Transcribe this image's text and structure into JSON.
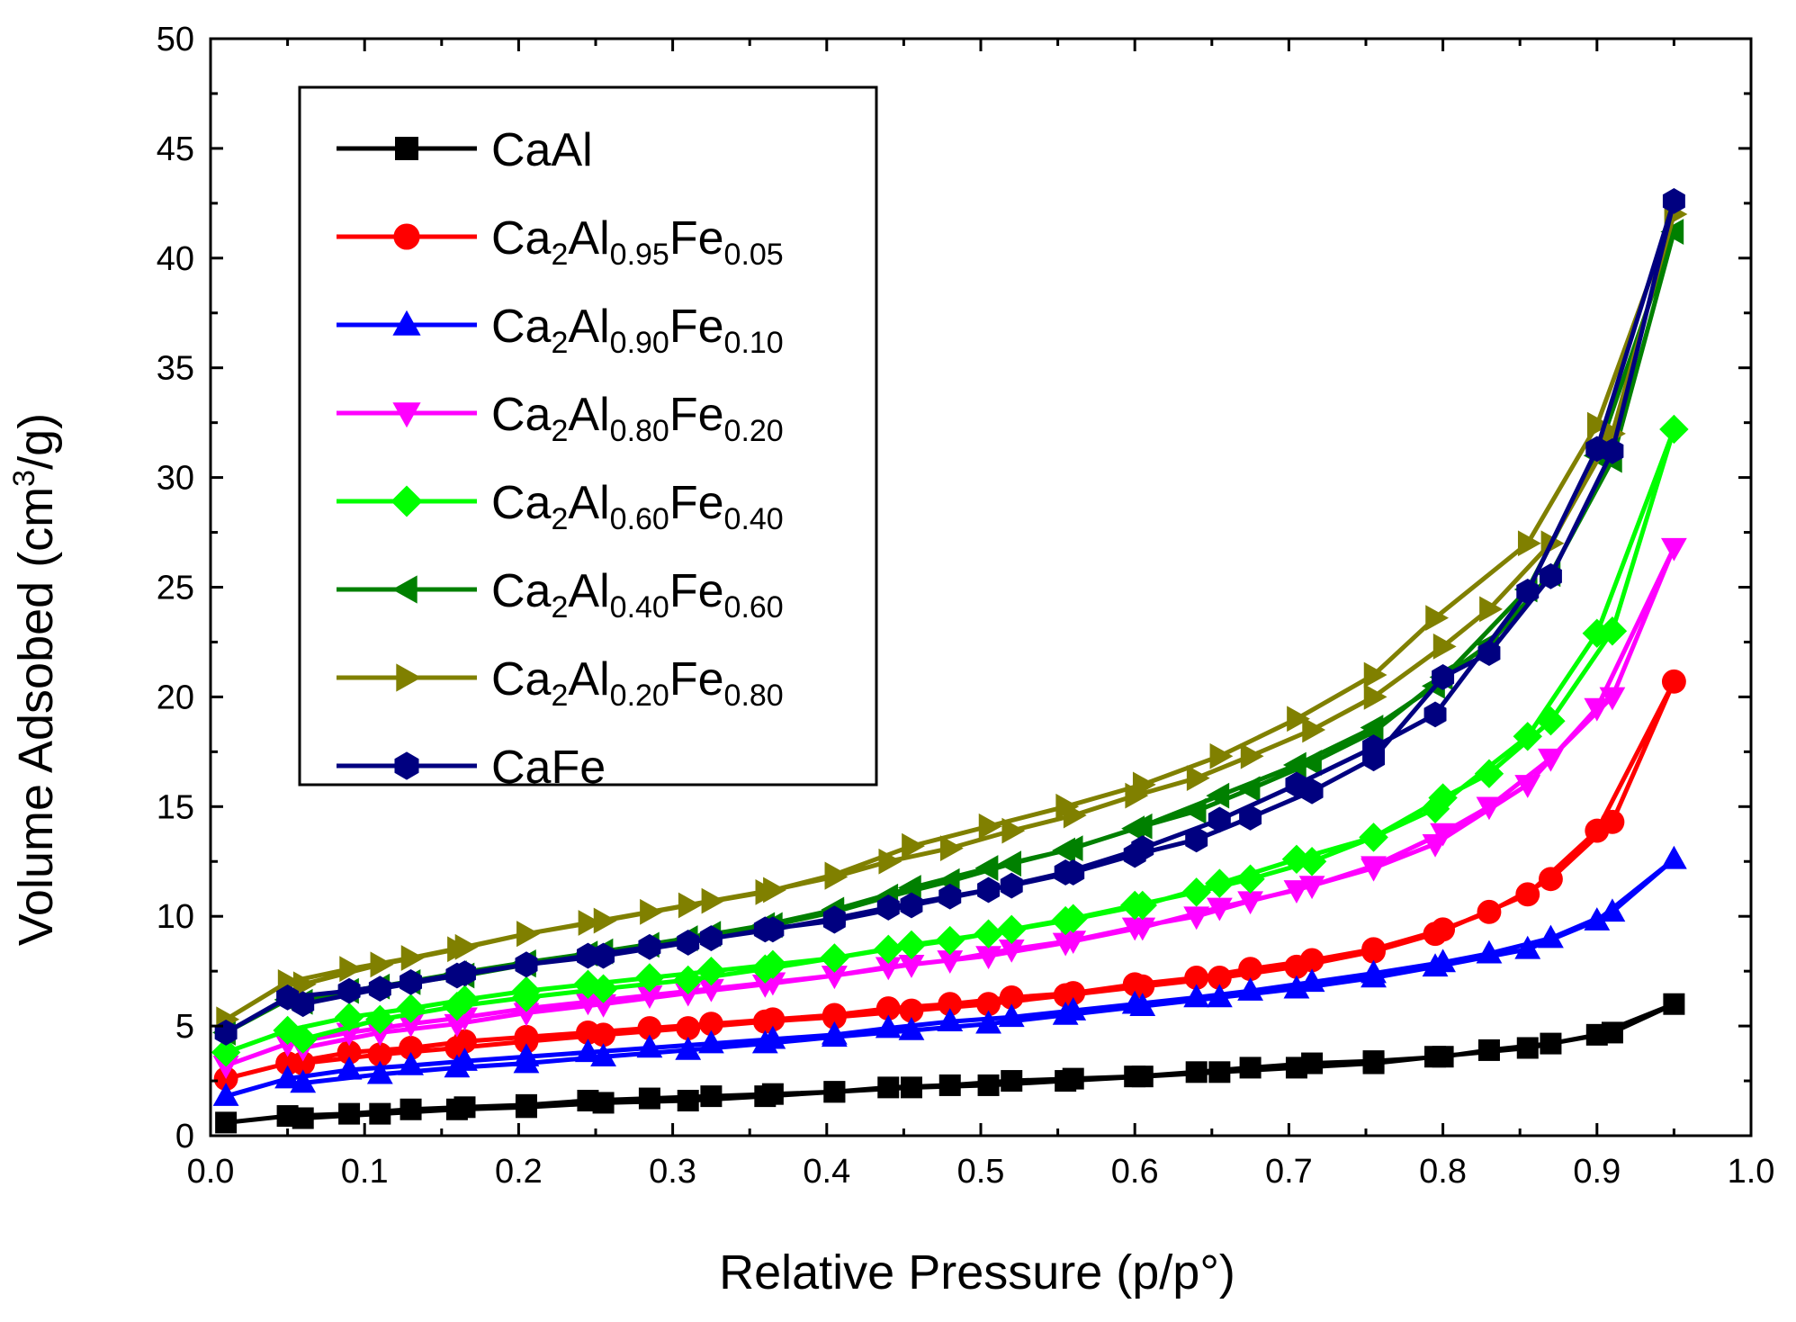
{
  "chart_data": {
    "type": "line",
    "xlabel": "Relative Pressure (p/p°)",
    "ylabel_main": "Volume Adsobed (cm",
    "ylabel_sup": "3",
    "ylabel_end": "/g)",
    "xlim": [
      0.0,
      1.0
    ],
    "ylim": [
      0,
      50
    ],
    "xticks": [
      "0.0",
      "0.1",
      "0.2",
      "0.3",
      "0.4",
      "0.5",
      "0.6",
      "0.7",
      "0.8",
      "0.9",
      "1.0"
    ],
    "yticks": [
      "0",
      "5",
      "10",
      "15",
      "20",
      "25",
      "30",
      "35",
      "40",
      "45",
      "50"
    ],
    "grid": false,
    "legend_position": "top-left",
    "series": [
      {
        "name": "CaAl",
        "color": "#000000",
        "marker": "square",
        "x": [
          0.01,
          0.05,
          0.09,
          0.13,
          0.165,
          0.205,
          0.245,
          0.285,
          0.325,
          0.365,
          0.405,
          0.44,
          0.48,
          0.52,
          0.56,
          0.6,
          0.64,
          0.675,
          0.715,
          0.755,
          0.8,
          0.83,
          0.87,
          0.91,
          0.95,
          0.9,
          0.855,
          0.795,
          0.755,
          0.705,
          0.655,
          0.605,
          0.555,
          0.505,
          0.455,
          0.405,
          0.36,
          0.31,
          0.255,
          0.205,
          0.16,
          0.11,
          0.06
        ],
        "y": [
          0.6,
          0.9,
          1.0,
          1.2,
          1.3,
          1.4,
          1.6,
          1.7,
          1.8,
          1.9,
          2.0,
          2.2,
          2.3,
          2.5,
          2.6,
          2.7,
          2.9,
          3.1,
          3.3,
          3.4,
          3.6,
          3.9,
          4.2,
          4.7,
          6.0,
          4.6,
          4.0,
          3.6,
          3.3,
          3.1,
          2.9,
          2.7,
          2.5,
          2.3,
          2.2,
          2.0,
          1.8,
          1.6,
          1.5,
          1.3,
          1.2,
          1.0,
          0.8
        ]
      },
      {
        "name": "Ca2Al0.95Fe0.05",
        "label_base": "Ca",
        "label_parts": [
          [
            "2",
            "sub"
          ],
          [
            "Al",
            ""
          ],
          [
            "0.95",
            "sub"
          ],
          [
            "Fe",
            ""
          ],
          [
            "0.05",
            "sub"
          ]
        ],
        "color": "#ff0000",
        "marker": "circle",
        "x": [
          0.01,
          0.05,
          0.09,
          0.13,
          0.165,
          0.205,
          0.245,
          0.285,
          0.325,
          0.365,
          0.405,
          0.44,
          0.48,
          0.52,
          0.56,
          0.6,
          0.64,
          0.675,
          0.715,
          0.755,
          0.8,
          0.83,
          0.87,
          0.91,
          0.95,
          0.9,
          0.855,
          0.795,
          0.755,
          0.705,
          0.655,
          0.605,
          0.555,
          0.505,
          0.455,
          0.405,
          0.36,
          0.31,
          0.255,
          0.205,
          0.16,
          0.11,
          0.06
        ],
        "y": [
          2.6,
          3.3,
          3.8,
          4.0,
          4.3,
          4.5,
          4.7,
          4.9,
          5.1,
          5.3,
          5.5,
          5.8,
          6.0,
          6.3,
          6.5,
          6.9,
          7.2,
          7.6,
          8.0,
          8.5,
          9.4,
          10.2,
          11.7,
          14.3,
          20.7,
          13.9,
          11.0,
          9.2,
          8.4,
          7.7,
          7.2,
          6.8,
          6.4,
          6.0,
          5.7,
          5.4,
          5.2,
          4.9,
          4.6,
          4.3,
          4.0,
          3.7,
          3.3
        ]
      },
      {
        "name": "Ca2Al0.90Fe0.10",
        "label_base": "Ca",
        "label_parts": [
          [
            "2",
            "sub"
          ],
          [
            "Al",
            ""
          ],
          [
            "0.90",
            "sub"
          ],
          [
            "Fe",
            ""
          ],
          [
            "0.10",
            "sub"
          ]
        ],
        "color": "#0000ff",
        "marker": "triangle-up",
        "x": [
          0.01,
          0.05,
          0.09,
          0.13,
          0.165,
          0.205,
          0.245,
          0.285,
          0.325,
          0.365,
          0.405,
          0.44,
          0.48,
          0.52,
          0.56,
          0.6,
          0.64,
          0.675,
          0.715,
          0.755,
          0.8,
          0.83,
          0.87,
          0.91,
          0.95,
          0.9,
          0.855,
          0.795,
          0.755,
          0.705,
          0.655,
          0.605,
          0.555,
          0.505,
          0.455,
          0.405,
          0.36,
          0.31,
          0.255,
          0.205,
          0.16,
          0.11,
          0.06
        ],
        "y": [
          1.8,
          2.6,
          3.0,
          3.2,
          3.4,
          3.6,
          3.8,
          4.0,
          4.2,
          4.4,
          4.6,
          4.9,
          5.2,
          5.4,
          5.7,
          6.0,
          6.3,
          6.6,
          7.0,
          7.4,
          7.9,
          8.3,
          9.0,
          10.2,
          12.6,
          9.8,
          8.5,
          7.7,
          7.2,
          6.7,
          6.3,
          5.9,
          5.5,
          5.1,
          4.8,
          4.5,
          4.2,
          3.9,
          3.6,
          3.3,
          3.1,
          2.8,
          2.4
        ]
      },
      {
        "name": "Ca2Al0.80Fe0.20",
        "label_base": "Ca",
        "label_parts": [
          [
            "2",
            "sub"
          ],
          [
            "Al",
            ""
          ],
          [
            "0.80",
            "sub"
          ],
          [
            "Fe",
            ""
          ],
          [
            "0.20",
            "sub"
          ]
        ],
        "color": "#ff00ff",
        "marker": "triangle-down",
        "x": [
          0.01,
          0.05,
          0.09,
          0.13,
          0.165,
          0.205,
          0.245,
          0.285,
          0.325,
          0.365,
          0.405,
          0.44,
          0.48,
          0.52,
          0.56,
          0.6,
          0.64,
          0.675,
          0.715,
          0.755,
          0.8,
          0.83,
          0.87,
          0.91,
          0.95,
          0.9,
          0.855,
          0.795,
          0.755,
          0.705,
          0.655,
          0.605,
          0.555,
          0.505,
          0.455,
          0.405,
          0.36,
          0.31,
          0.255,
          0.205,
          0.16,
          0.11,
          0.06
        ],
        "y": [
          3.2,
          4.2,
          4.7,
          5.1,
          5.4,
          5.8,
          6.1,
          6.4,
          6.7,
          7.0,
          7.3,
          7.7,
          8.0,
          8.5,
          8.9,
          9.5,
          10.0,
          10.7,
          11.4,
          12.3,
          13.8,
          15.0,
          17.2,
          20.0,
          26.8,
          19.5,
          16.0,
          13.3,
          12.2,
          11.2,
          10.4,
          9.5,
          8.8,
          8.2,
          7.8,
          7.3,
          6.9,
          6.5,
          6.0,
          5.6,
          5.1,
          4.7,
          4.0
        ]
      },
      {
        "name": "Ca2Al0.60Fe0.40",
        "label_base": "Ca",
        "label_parts": [
          [
            "2",
            "sub"
          ],
          [
            "Al",
            ""
          ],
          [
            "0.60",
            "sub"
          ],
          [
            "Fe",
            ""
          ],
          [
            "0.40",
            "sub"
          ]
        ],
        "color": "#00ff00",
        "marker": "diamond",
        "x": [
          0.01,
          0.05,
          0.09,
          0.13,
          0.165,
          0.205,
          0.245,
          0.285,
          0.325,
          0.365,
          0.405,
          0.44,
          0.48,
          0.52,
          0.56,
          0.6,
          0.64,
          0.675,
          0.715,
          0.755,
          0.8,
          0.83,
          0.87,
          0.91,
          0.95,
          0.9,
          0.855,
          0.795,
          0.755,
          0.705,
          0.655,
          0.605,
          0.555,
          0.505,
          0.455,
          0.405,
          0.36,
          0.31,
          0.255,
          0.205,
          0.16,
          0.11,
          0.06
        ],
        "y": [
          3.8,
          4.8,
          5.4,
          5.8,
          6.2,
          6.6,
          6.9,
          7.2,
          7.5,
          7.8,
          8.1,
          8.5,
          8.9,
          9.4,
          9.9,
          10.5,
          11.1,
          11.7,
          12.5,
          13.6,
          15.4,
          16.5,
          18.9,
          23.0,
          32.2,
          22.9,
          18.2,
          14.9,
          13.6,
          12.6,
          11.5,
          10.5,
          9.8,
          9.2,
          8.7,
          8.1,
          7.6,
          7.1,
          6.7,
          6.3,
          5.9,
          5.3,
          4.4
        ]
      },
      {
        "name": "Ca2Al0.40Fe0.60",
        "label_base": "Ca",
        "label_parts": [
          [
            "2",
            "sub"
          ],
          [
            "Al",
            ""
          ],
          [
            "0.40",
            "sub"
          ],
          [
            "Fe",
            ""
          ],
          [
            "0.60",
            "sub"
          ]
        ],
        "color": "#008000",
        "marker": "triangle-left",
        "x": [
          0.01,
          0.05,
          0.09,
          0.13,
          0.165,
          0.205,
          0.245,
          0.285,
          0.325,
          0.365,
          0.405,
          0.44,
          0.48,
          0.52,
          0.56,
          0.6,
          0.64,
          0.675,
          0.715,
          0.755,
          0.8,
          0.83,
          0.87,
          0.91,
          0.95,
          0.9,
          0.855,
          0.795,
          0.755,
          0.705,
          0.655,
          0.605,
          0.555,
          0.505,
          0.455,
          0.405,
          0.36,
          0.31,
          0.255,
          0.205,
          0.16,
          0.11,
          0.06
        ],
        "y": [
          4.7,
          6.2,
          6.6,
          7.0,
          7.3,
          7.8,
          8.3,
          8.7,
          9.2,
          9.6,
          10.2,
          10.9,
          11.6,
          12.4,
          13.1,
          14.0,
          14.8,
          15.8,
          17.0,
          18.4,
          20.9,
          22.4,
          25.6,
          30.8,
          41.2,
          31.0,
          24.9,
          20.5,
          18.6,
          16.9,
          15.5,
          14.1,
          13.0,
          12.2,
          11.3,
          10.3,
          9.6,
          9.0,
          8.4,
          7.9,
          7.4,
          6.8,
          6.1
        ]
      },
      {
        "name": "Ca2Al0.20Fe0.80",
        "label_base": "Ca",
        "label_parts": [
          [
            "2",
            "sub"
          ],
          [
            "Al",
            ""
          ],
          [
            "0.20",
            "sub"
          ],
          [
            "Fe",
            ""
          ],
          [
            "0.80",
            "sub"
          ]
        ],
        "color": "#808000",
        "marker": "triangle-right",
        "x": [
          0.01,
          0.05,
          0.09,
          0.13,
          0.165,
          0.205,
          0.245,
          0.285,
          0.325,
          0.365,
          0.405,
          0.44,
          0.48,
          0.52,
          0.56,
          0.6,
          0.64,
          0.675,
          0.715,
          0.755,
          0.8,
          0.83,
          0.87,
          0.91,
          0.95,
          0.9,
          0.855,
          0.795,
          0.755,
          0.705,
          0.655,
          0.605,
          0.555,
          0.505,
          0.455,
          0.405,
          0.36,
          0.31,
          0.255,
          0.205,
          0.16,
          0.11,
          0.06
        ],
        "y": [
          5.3,
          7.0,
          7.6,
          8.1,
          8.6,
          9.2,
          9.7,
          10.2,
          10.7,
          11.2,
          11.8,
          12.5,
          13.1,
          13.9,
          14.6,
          15.5,
          16.3,
          17.3,
          18.5,
          20.0,
          22.3,
          24.0,
          27.0,
          32.0,
          42.0,
          32.4,
          27.0,
          23.6,
          21.0,
          19.0,
          17.3,
          16.0,
          15.0,
          14.1,
          13.2,
          11.9,
          11.1,
          10.5,
          9.8,
          9.2,
          8.5,
          7.8,
          6.9
        ]
      },
      {
        "name": "CaFe",
        "color": "#000080",
        "marker": "hexagon",
        "x": [
          0.01,
          0.05,
          0.09,
          0.13,
          0.165,
          0.205,
          0.245,
          0.285,
          0.325,
          0.365,
          0.405,
          0.44,
          0.48,
          0.52,
          0.56,
          0.6,
          0.64,
          0.675,
          0.715,
          0.755,
          0.8,
          0.83,
          0.87,
          0.91,
          0.95,
          0.9,
          0.855,
          0.795,
          0.755,
          0.705,
          0.655,
          0.605,
          0.555,
          0.505,
          0.455,
          0.405,
          0.36,
          0.31,
          0.255,
          0.205,
          0.16,
          0.11,
          0.06
        ],
        "y": [
          4.7,
          6.3,
          6.6,
          7.0,
          7.4,
          7.8,
          8.2,
          8.6,
          9.0,
          9.4,
          9.9,
          10.4,
          10.9,
          11.4,
          12.0,
          12.8,
          13.5,
          14.5,
          15.7,
          17.2,
          20.9,
          22.0,
          25.5,
          31.2,
          42.6,
          31.3,
          24.8,
          19.2,
          17.7,
          16.0,
          14.4,
          13.1,
          12.0,
          11.2,
          10.5,
          9.8,
          9.4,
          8.8,
          8.2,
          7.8,
          7.3,
          6.7,
          6.0
        ]
      }
    ]
  }
}
